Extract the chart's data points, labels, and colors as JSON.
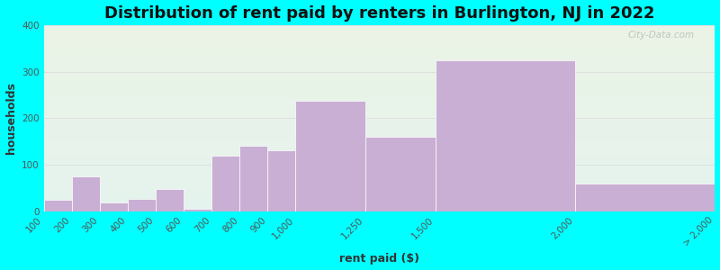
{
  "title": "Distribution of rent paid by renters in Burlington, NJ in 2022",
  "xlabel": "rent paid ($)",
  "ylabel": "households",
  "tick_labels": [
    "100",
    "200",
    "300",
    "400",
    "500",
    "600",
    "700",
    "800",
    "900",
    "1,000",
    "1,250",
    "1,500",
    "2,000",
    "> 2,000"
  ],
  "bar_values": [
    25,
    75,
    18,
    27,
    47,
    5,
    120,
    140,
    130,
    238,
    160,
    325,
    60
  ],
  "last_bar_value": 60,
  "bar_color": "#c9afd4",
  "bar_edgecolor": "#ffffff",
  "ylim": [
    0,
    400
  ],
  "yticks": [
    0,
    100,
    200,
    300,
    400
  ],
  "background_color_top": "#eaf3e5",
  "background_color_bottom": "#e5f3ee",
  "outer_background": "#00ffff",
  "title_fontsize": 13,
  "axis_label_fontsize": 9,
  "tick_fontsize": 7.5,
  "watermark": "City-Data.com",
  "grid_color": "#dddddd"
}
